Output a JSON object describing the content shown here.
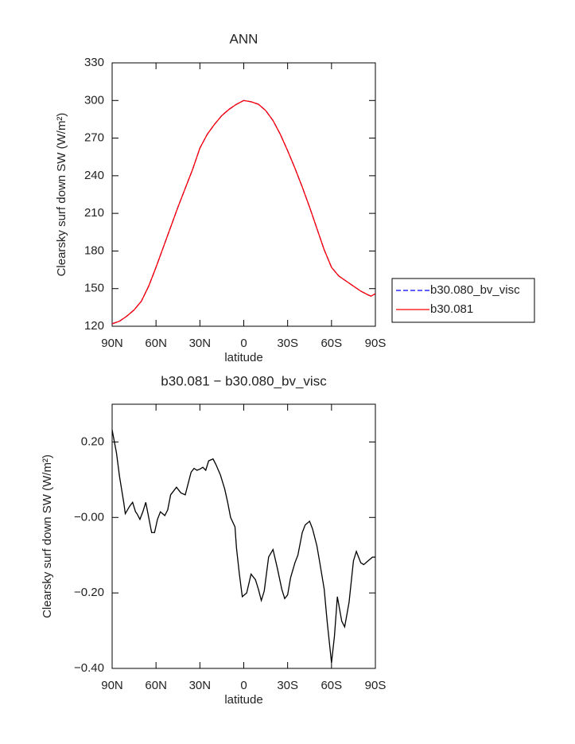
{
  "chart_data": [
    {
      "type": "line",
      "title": "ANN",
      "xlabel": "latitude",
      "ylabel": "Clearsky surf down SW (W/m²)",
      "x": [
        90,
        85,
        80,
        75,
        70,
        65,
        60,
        55,
        50,
        45,
        40,
        35,
        30,
        25,
        20,
        15,
        10,
        5,
        0,
        -5,
        -10,
        -15,
        -20,
        -25,
        -30,
        -35,
        -40,
        -45,
        -50,
        -55,
        -60,
        -65,
        -70,
        -75,
        -80,
        -85,
        -87,
        -90
      ],
      "series": [
        {
          "name": "b30.080_bv_visc",
          "color": "#0000ff",
          "linestyle": "dashed",
          "values": [
            122,
            124,
            128,
            133,
            140,
            152,
            167,
            183,
            199,
            215,
            230,
            245,
            262,
            273,
            281,
            288,
            293,
            297,
            300,
            299,
            297,
            292,
            284,
            273,
            260,
            246,
            231,
            215,
            198,
            181,
            167,
            160,
            156,
            152,
            148,
            145,
            144,
            146
          ]
        },
        {
          "name": "b30.081",
          "color": "#ff0000",
          "linestyle": "solid",
          "values": [
            122,
            124,
            128,
            133,
            140,
            152,
            167,
            183,
            199,
            215,
            230,
            245,
            262,
            273,
            281,
            288,
            293,
            297,
            300,
            299,
            297,
            292,
            284,
            273,
            260,
            246,
            231,
            215,
            198,
            181,
            167,
            160,
            156,
            152,
            148,
            145,
            144,
            146
          ]
        }
      ],
      "xlim": [
        90,
        -90
      ],
      "xticks": [
        {
          "value": 90,
          "label": "90N"
        },
        {
          "value": 60,
          "label": "60N"
        },
        {
          "value": 30,
          "label": "30N"
        },
        0,
        {
          "value": -30,
          "label": "30S"
        },
        {
          "value": -60,
          "label": "60S"
        },
        {
          "value": -90,
          "label": "90S"
        }
      ],
      "ylim": [
        120,
        330
      ],
      "yticks": [
        120,
        150,
        180,
        210,
        240,
        270,
        300,
        330
      ],
      "legend": "right"
    },
    {
      "type": "line",
      "title": "b30.081 − b30.080_bv_visc",
      "xlabel": "latitude",
      "ylabel": "Clearsky surf down SW (W/m²)",
      "x": [
        90,
        87,
        85,
        82,
        81,
        78,
        76,
        74,
        73,
        71,
        69,
        67,
        63,
        61,
        59,
        57,
        54,
        52,
        50,
        46,
        43,
        40,
        38,
        36,
        34,
        32,
        30,
        28,
        26,
        24,
        21,
        19,
        16,
        13,
        11,
        9,
        6,
        5,
        3,
        1,
        -2,
        -5,
        -8,
        -10,
        -12,
        -14,
        -17,
        -20,
        -23,
        -26,
        -28,
        -30,
        -32,
        -35,
        -37,
        -40,
        -42,
        -45,
        -47,
        -50,
        -52,
        -55,
        -57,
        -60,
        -62,
        -64,
        -67,
        -69,
        -72,
        -75,
        -77,
        -80,
        -82,
        -85,
        -88,
        -90
      ],
      "values": [
        0.232,
        0.17,
        0.11,
        0.038,
        0.01,
        0.03,
        0.04,
        0.015,
        0.01,
        -0.005,
        0.015,
        0.04,
        -0.04,
        -0.04,
        -0.005,
        0.015,
        0.005,
        0.02,
        0.06,
        0.08,
        0.065,
        0.06,
        0.09,
        0.12,
        0.13,
        0.125,
        0.128,
        0.133,
        0.125,
        0.15,
        0.155,
        0.14,
        0.113,
        0.075,
        0.04,
        0.0,
        -0.025,
        -0.08,
        -0.15,
        -0.21,
        -0.2,
        -0.15,
        -0.165,
        -0.19,
        -0.22,
        -0.195,
        -0.105,
        -0.085,
        -0.135,
        -0.19,
        -0.215,
        -0.205,
        -0.16,
        -0.12,
        -0.1,
        -0.04,
        -0.02,
        -0.01,
        -0.03,
        -0.075,
        -0.12,
        -0.19,
        -0.275,
        -0.385,
        -0.315,
        -0.21,
        -0.275,
        -0.29,
        -0.225,
        -0.115,
        -0.09,
        -0.12,
        -0.125,
        -0.115,
        -0.105,
        -0.105
      ],
      "color": "#000000",
      "xlim": [
        90,
        -90
      ],
      "xticks": [
        {
          "value": 90,
          "label": "90N"
        },
        {
          "value": 60,
          "label": "60N"
        },
        {
          "value": 30,
          "label": "30N"
        },
        0,
        {
          "value": -30,
          "label": "30S"
        },
        {
          "value": -60,
          "label": "60S"
        },
        {
          "value": -90,
          "label": "90S"
        }
      ],
      "ylim": [
        -0.4,
        0.3
      ],
      "yticks": [
        {
          "value": -0.4,
          "label": "−0.40"
        },
        {
          "value": -0.2,
          "label": "−0.20"
        },
        {
          "value": 0,
          "label": "−0.00"
        },
        {
          "value": 0.2,
          "label": "0.20"
        }
      ]
    }
  ]
}
